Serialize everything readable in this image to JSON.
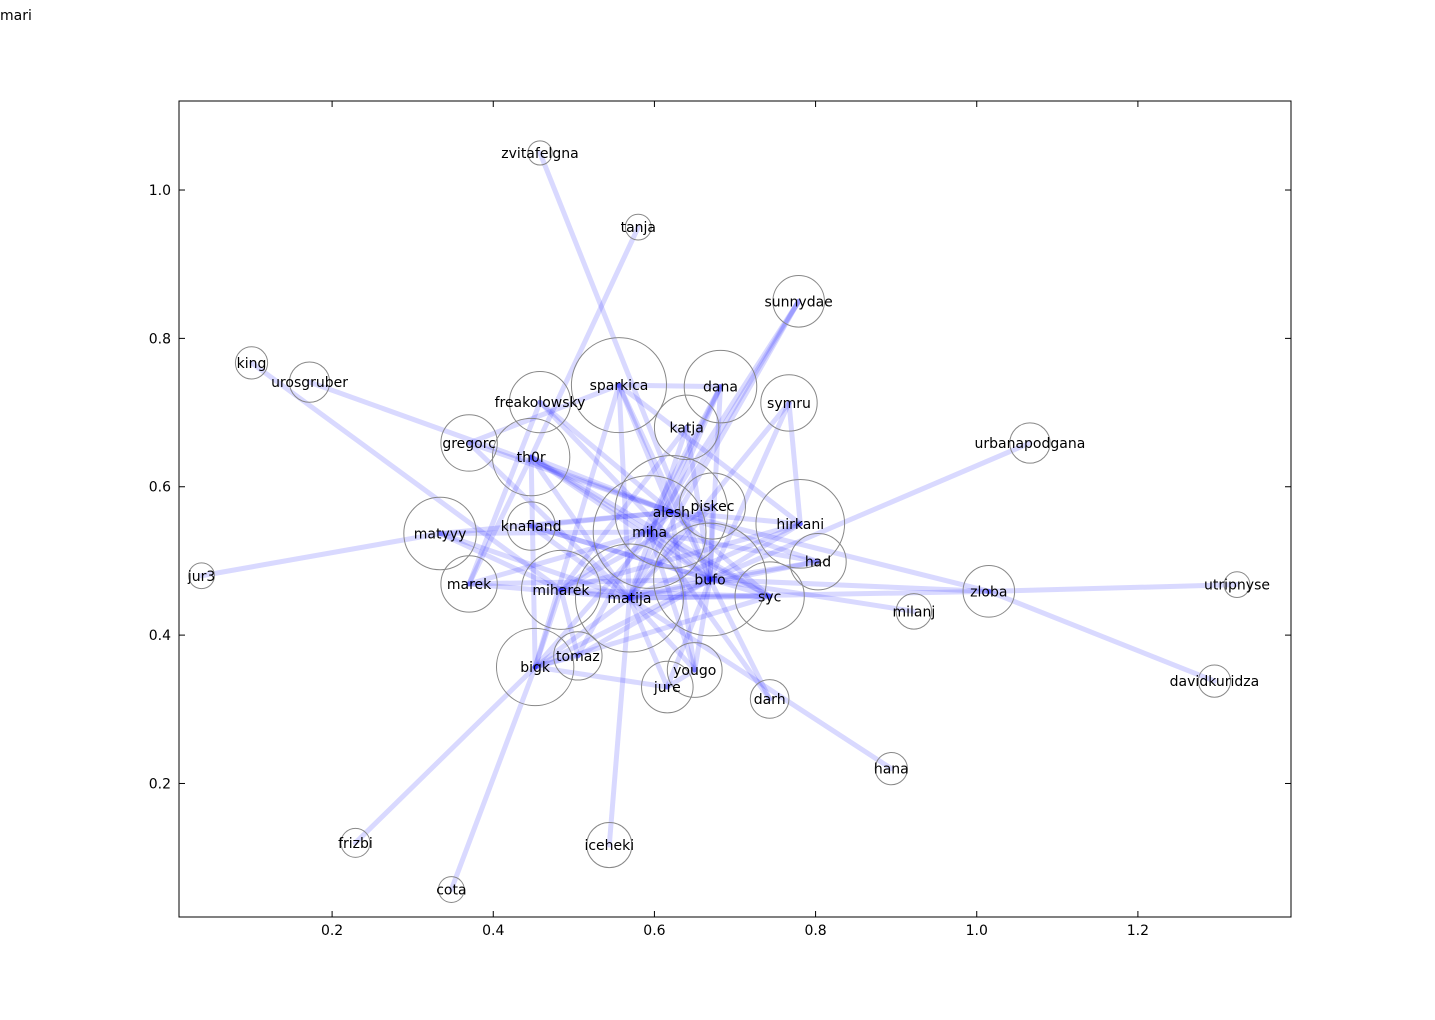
{
  "corner_label": "mari",
  "chart_data": {
    "type": "scatter",
    "title": "",
    "xlabel": "",
    "ylabel": "",
    "xlim": [
      0.01,
      1.39
    ],
    "ylim": [
      0.02,
      1.12
    ],
    "xticks": [
      0.2,
      0.4,
      0.6,
      0.8,
      1.0,
      1.2
    ],
    "yticks": [
      0.2,
      0.4,
      0.6,
      0.8,
      1.0
    ],
    "xtick_labels": [
      "0.2",
      "0.4",
      "0.6",
      "0.8",
      "1.0",
      "1.2"
    ],
    "ytick_labels": [
      "0.2",
      "0.4",
      "0.6",
      "0.8",
      "1.0"
    ],
    "grid": false,
    "node_edge_color": "#888888",
    "link_color": "#1f1fff",
    "nodes": [
      {
        "id": "zvitafelgna",
        "x": 0.458,
        "y": 1.05,
        "size": 0.015
      },
      {
        "id": "tanja",
        "x": 0.58,
        "y": 0.95,
        "size": 0.016
      },
      {
        "id": "sunnydae",
        "x": 0.779,
        "y": 0.85,
        "size": 0.032
      },
      {
        "id": "king",
        "x": 0.1,
        "y": 0.767,
        "size": 0.02
      },
      {
        "id": "urosgruber",
        "x": 0.172,
        "y": 0.741,
        "size": 0.025
      },
      {
        "id": "sparkica",
        "x": 0.556,
        "y": 0.737,
        "size": 0.059
      },
      {
        "id": "dana",
        "x": 0.682,
        "y": 0.735,
        "size": 0.045
      },
      {
        "id": "freakolowsky",
        "x": 0.458,
        "y": 0.714,
        "size": 0.038
      },
      {
        "id": "symru",
        "x": 0.767,
        "y": 0.713,
        "size": 0.035
      },
      {
        "id": "katja",
        "x": 0.64,
        "y": 0.68,
        "size": 0.04
      },
      {
        "id": "gregorc",
        "x": 0.37,
        "y": 0.659,
        "size": 0.035
      },
      {
        "id": "urbanapodgana",
        "x": 1.066,
        "y": 0.659,
        "size": 0.025
      },
      {
        "id": "th0r",
        "x": 0.447,
        "y": 0.64,
        "size": 0.048
      },
      {
        "id": "piskec",
        "x": 0.672,
        "y": 0.574,
        "size": 0.041
      },
      {
        "id": "alesh",
        "x": 0.621,
        "y": 0.566,
        "size": 0.07
      },
      {
        "id": "hirkani",
        "x": 0.781,
        "y": 0.55,
        "size": 0.055
      },
      {
        "id": "knafland",
        "x": 0.447,
        "y": 0.547,
        "size": 0.03
      },
      {
        "id": "miha",
        "x": 0.594,
        "y": 0.539,
        "size": 0.07
      },
      {
        "id": "matyyy",
        "x": 0.334,
        "y": 0.537,
        "size": 0.045
      },
      {
        "id": "had",
        "x": 0.803,
        "y": 0.499,
        "size": 0.035
      },
      {
        "id": "jur3",
        "x": 0.038,
        "y": 0.48,
        "size": 0.016
      },
      {
        "id": "bufo",
        "x": 0.669,
        "y": 0.475,
        "size": 0.07
      },
      {
        "id": "marek",
        "x": 0.37,
        "y": 0.469,
        "size": 0.035
      },
      {
        "id": "miharek",
        "x": 0.484,
        "y": 0.461,
        "size": 0.049
      },
      {
        "id": "syc",
        "x": 0.743,
        "y": 0.452,
        "size": 0.043
      },
      {
        "id": "zloba",
        "x": 1.015,
        "y": 0.459,
        "size": 0.032
      },
      {
        "id": "utripnyse",
        "x": 1.323,
        "y": 0.468,
        "size": 0.016
      },
      {
        "id": "matija",
        "x": 0.569,
        "y": 0.45,
        "size": 0.067
      },
      {
        "id": "milanj",
        "x": 0.922,
        "y": 0.432,
        "size": 0.022
      },
      {
        "id": "tomaz",
        "x": 0.505,
        "y": 0.372,
        "size": 0.03
      },
      {
        "id": "bigk",
        "x": 0.452,
        "y": 0.357,
        "size": 0.048
      },
      {
        "id": "yougo",
        "x": 0.65,
        "y": 0.353,
        "size": 0.034
      },
      {
        "id": "jure",
        "x": 0.616,
        "y": 0.33,
        "size": 0.032
      },
      {
        "id": "darh",
        "x": 0.743,
        "y": 0.314,
        "size": 0.024
      },
      {
        "id": "davidkuridza",
        "x": 1.295,
        "y": 0.338,
        "size": 0.02
      },
      {
        "id": "hana",
        "x": 0.894,
        "y": 0.22,
        "size": 0.02
      },
      {
        "id": "iceheki",
        "x": 0.544,
        "y": 0.117,
        "size": 0.028
      },
      {
        "id": "frizbi",
        "x": 0.229,
        "y": 0.12,
        "size": 0.018
      },
      {
        "id": "cota",
        "x": 0.348,
        "y": 0.057,
        "size": 0.016
      }
    ],
    "links": [
      [
        "zvitafelgna",
        "bufo"
      ],
      [
        "tanja",
        "th0r"
      ],
      [
        "sunnydae",
        "miha"
      ],
      [
        "sunnydae",
        "alesh"
      ],
      [
        "sunnydae",
        "matija"
      ],
      [
        "king",
        "miharek"
      ],
      [
        "urosgruber",
        "alesh"
      ],
      [
        "sparkica",
        "dana"
      ],
      [
        "sparkica",
        "alesh"
      ],
      [
        "sparkica",
        "matija"
      ],
      [
        "sparkica",
        "gregorc"
      ],
      [
        "sparkica",
        "bufo"
      ],
      [
        "sparkica",
        "hirkani"
      ],
      [
        "sparkica",
        "bigk"
      ],
      [
        "dana",
        "bufo"
      ],
      [
        "dana",
        "miha"
      ],
      [
        "dana",
        "tomaz"
      ],
      [
        "dana",
        "matija"
      ],
      [
        "freakolowsky",
        "bufo"
      ],
      [
        "freakolowsky",
        "marek"
      ],
      [
        "freakolowsky",
        "alesh"
      ],
      [
        "symru",
        "matija"
      ],
      [
        "symru",
        "bufo"
      ],
      [
        "symru",
        "hirkani"
      ],
      [
        "katja",
        "matija"
      ],
      [
        "katja",
        "bufo"
      ],
      [
        "katja",
        "miharek"
      ],
      [
        "gregorc",
        "alesh"
      ],
      [
        "gregorc",
        "matija"
      ],
      [
        "urbanapodgana",
        "bufo"
      ],
      [
        "th0r",
        "alesh"
      ],
      [
        "th0r",
        "miha"
      ],
      [
        "th0r",
        "bufo"
      ],
      [
        "th0r",
        "marek"
      ],
      [
        "th0r",
        "matija"
      ],
      [
        "th0r",
        "syc"
      ],
      [
        "th0r",
        "bigk"
      ],
      [
        "piskec",
        "matija"
      ],
      [
        "piskec",
        "miharek"
      ],
      [
        "piskec",
        "bufo"
      ],
      [
        "alesh",
        "hirkani"
      ],
      [
        "alesh",
        "had"
      ],
      [
        "alesh",
        "zloba"
      ],
      [
        "alesh",
        "knafland"
      ],
      [
        "alesh",
        "matyyy"
      ],
      [
        "alesh",
        "syc"
      ],
      [
        "alesh",
        "bigk"
      ],
      [
        "alesh",
        "miharek"
      ],
      [
        "alesh",
        "yougo"
      ],
      [
        "hirkani",
        "matija"
      ],
      [
        "hirkani",
        "miharek"
      ],
      [
        "hirkani",
        "bufo"
      ],
      [
        "knafland",
        "matija"
      ],
      [
        "knafland",
        "bufo"
      ],
      [
        "knafland",
        "syc"
      ],
      [
        "miha",
        "matyyy"
      ],
      [
        "miha",
        "bufo"
      ],
      [
        "miha",
        "marek"
      ],
      [
        "miha",
        "had"
      ],
      [
        "miha",
        "syc"
      ],
      [
        "miha",
        "darh"
      ],
      [
        "miha",
        "yougo"
      ],
      [
        "matyyy",
        "jur3"
      ],
      [
        "matyyy",
        "matija"
      ],
      [
        "matyyy",
        "miharek"
      ],
      [
        "had",
        "matija"
      ],
      [
        "had",
        "bufo"
      ],
      [
        "bufo",
        "zloba"
      ],
      [
        "bufo",
        "milanj"
      ],
      [
        "bufo",
        "marek"
      ],
      [
        "bufo",
        "jure"
      ],
      [
        "bufo",
        "bigk"
      ],
      [
        "bufo",
        "matija"
      ],
      [
        "bufo",
        "yougo"
      ],
      [
        "bufo",
        "tomaz"
      ],
      [
        "bufo",
        "darh"
      ],
      [
        "marek",
        "matija"
      ],
      [
        "miharek",
        "matija"
      ],
      [
        "miharek",
        "syc"
      ],
      [
        "miharek",
        "tomaz"
      ],
      [
        "miharek",
        "bigk"
      ],
      [
        "syc",
        "matija"
      ],
      [
        "syc",
        "bigk"
      ],
      [
        "zloba",
        "utripnyse"
      ],
      [
        "zloba",
        "davidkuridza"
      ],
      [
        "zloba",
        "matija"
      ],
      [
        "matija",
        "hana"
      ],
      [
        "matija",
        "iceheki"
      ],
      [
        "matija",
        "bigk"
      ],
      [
        "matija",
        "yougo"
      ],
      [
        "matija",
        "jure"
      ],
      [
        "tomaz",
        "bigk"
      ],
      [
        "bigk",
        "frizbi"
      ],
      [
        "bigk",
        "cota"
      ],
      [
        "bigk",
        "jure"
      ],
      [
        "jure",
        "yougo"
      ]
    ]
  }
}
